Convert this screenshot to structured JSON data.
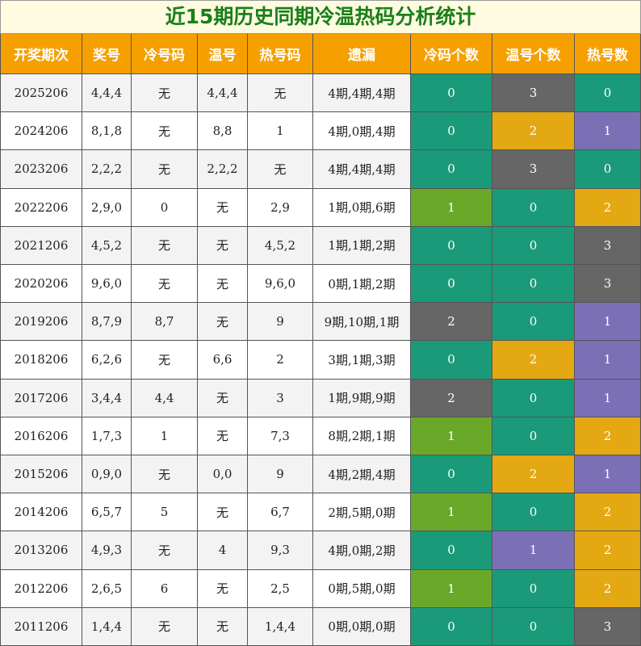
{
  "title": "近15期历史同期冷温热码分析统计",
  "table": {
    "headers": [
      "开奖期次",
      "奖号",
      "冷号码",
      "温号",
      "热号码",
      "遗漏",
      "冷码个数",
      "温号个数",
      "热号数"
    ],
    "count_colors": [
      [
        "#1a9a78",
        "#6aa82a",
        "#666666",
        "#666666"
      ],
      [
        "#1a9a78",
        "#7b6fb5",
        "#e3a812",
        "#666666"
      ],
      [
        "#1a9a78",
        "#7b6fb5",
        "#e3a812",
        "#666666"
      ]
    ],
    "rows": [
      [
        "2025206",
        "4,4,4",
        "无",
        "4,4,4",
        "无",
        "4期,4期,4期",
        0,
        3,
        0
      ],
      [
        "2024206",
        "8,1,8",
        "无",
        "8,8",
        "1",
        "4期,0期,4期",
        0,
        2,
        1
      ],
      [
        "2023206",
        "2,2,2",
        "无",
        "2,2,2",
        "无",
        "4期,4期,4期",
        0,
        3,
        0
      ],
      [
        "2022206",
        "2,9,0",
        "0",
        "无",
        "2,9",
        "1期,0期,6期",
        1,
        0,
        2
      ],
      [
        "2021206",
        "4,5,2",
        "无",
        "无",
        "4,5,2",
        "1期,1期,2期",
        0,
        0,
        3
      ],
      [
        "2020206",
        "9,6,0",
        "无",
        "无",
        "9,6,0",
        "0期,1期,2期",
        0,
        0,
        3
      ],
      [
        "2019206",
        "8,7,9",
        "8,7",
        "无",
        "9",
        "9期,10期,1期",
        2,
        0,
        1
      ],
      [
        "2018206",
        "6,2,6",
        "无",
        "6,6",
        "2",
        "3期,1期,3期",
        0,
        2,
        1
      ],
      [
        "2017206",
        "3,4,4",
        "4,4",
        "无",
        "3",
        "1期,9期,9期",
        2,
        0,
        1
      ],
      [
        "2016206",
        "1,7,3",
        "1",
        "无",
        "7,3",
        "8期,2期,1期",
        1,
        0,
        2
      ],
      [
        "2015206",
        "0,9,0",
        "无",
        "0,0",
        "9",
        "4期,2期,4期",
        0,
        2,
        1
      ],
      [
        "2014206",
        "6,5,7",
        "5",
        "无",
        "6,7",
        "2期,5期,0期",
        1,
        0,
        2
      ],
      [
        "2013206",
        "4,9,3",
        "无",
        "4",
        "9,3",
        "4期,0期,2期",
        0,
        1,
        2
      ],
      [
        "2012206",
        "2,6,5",
        "6",
        "无",
        "2,5",
        "0期,5期,0期",
        1,
        0,
        2
      ],
      [
        "2011206",
        "1,4,4",
        "无",
        "无",
        "1,4,4",
        "0期,0期,0期",
        0,
        0,
        3
      ]
    ]
  }
}
